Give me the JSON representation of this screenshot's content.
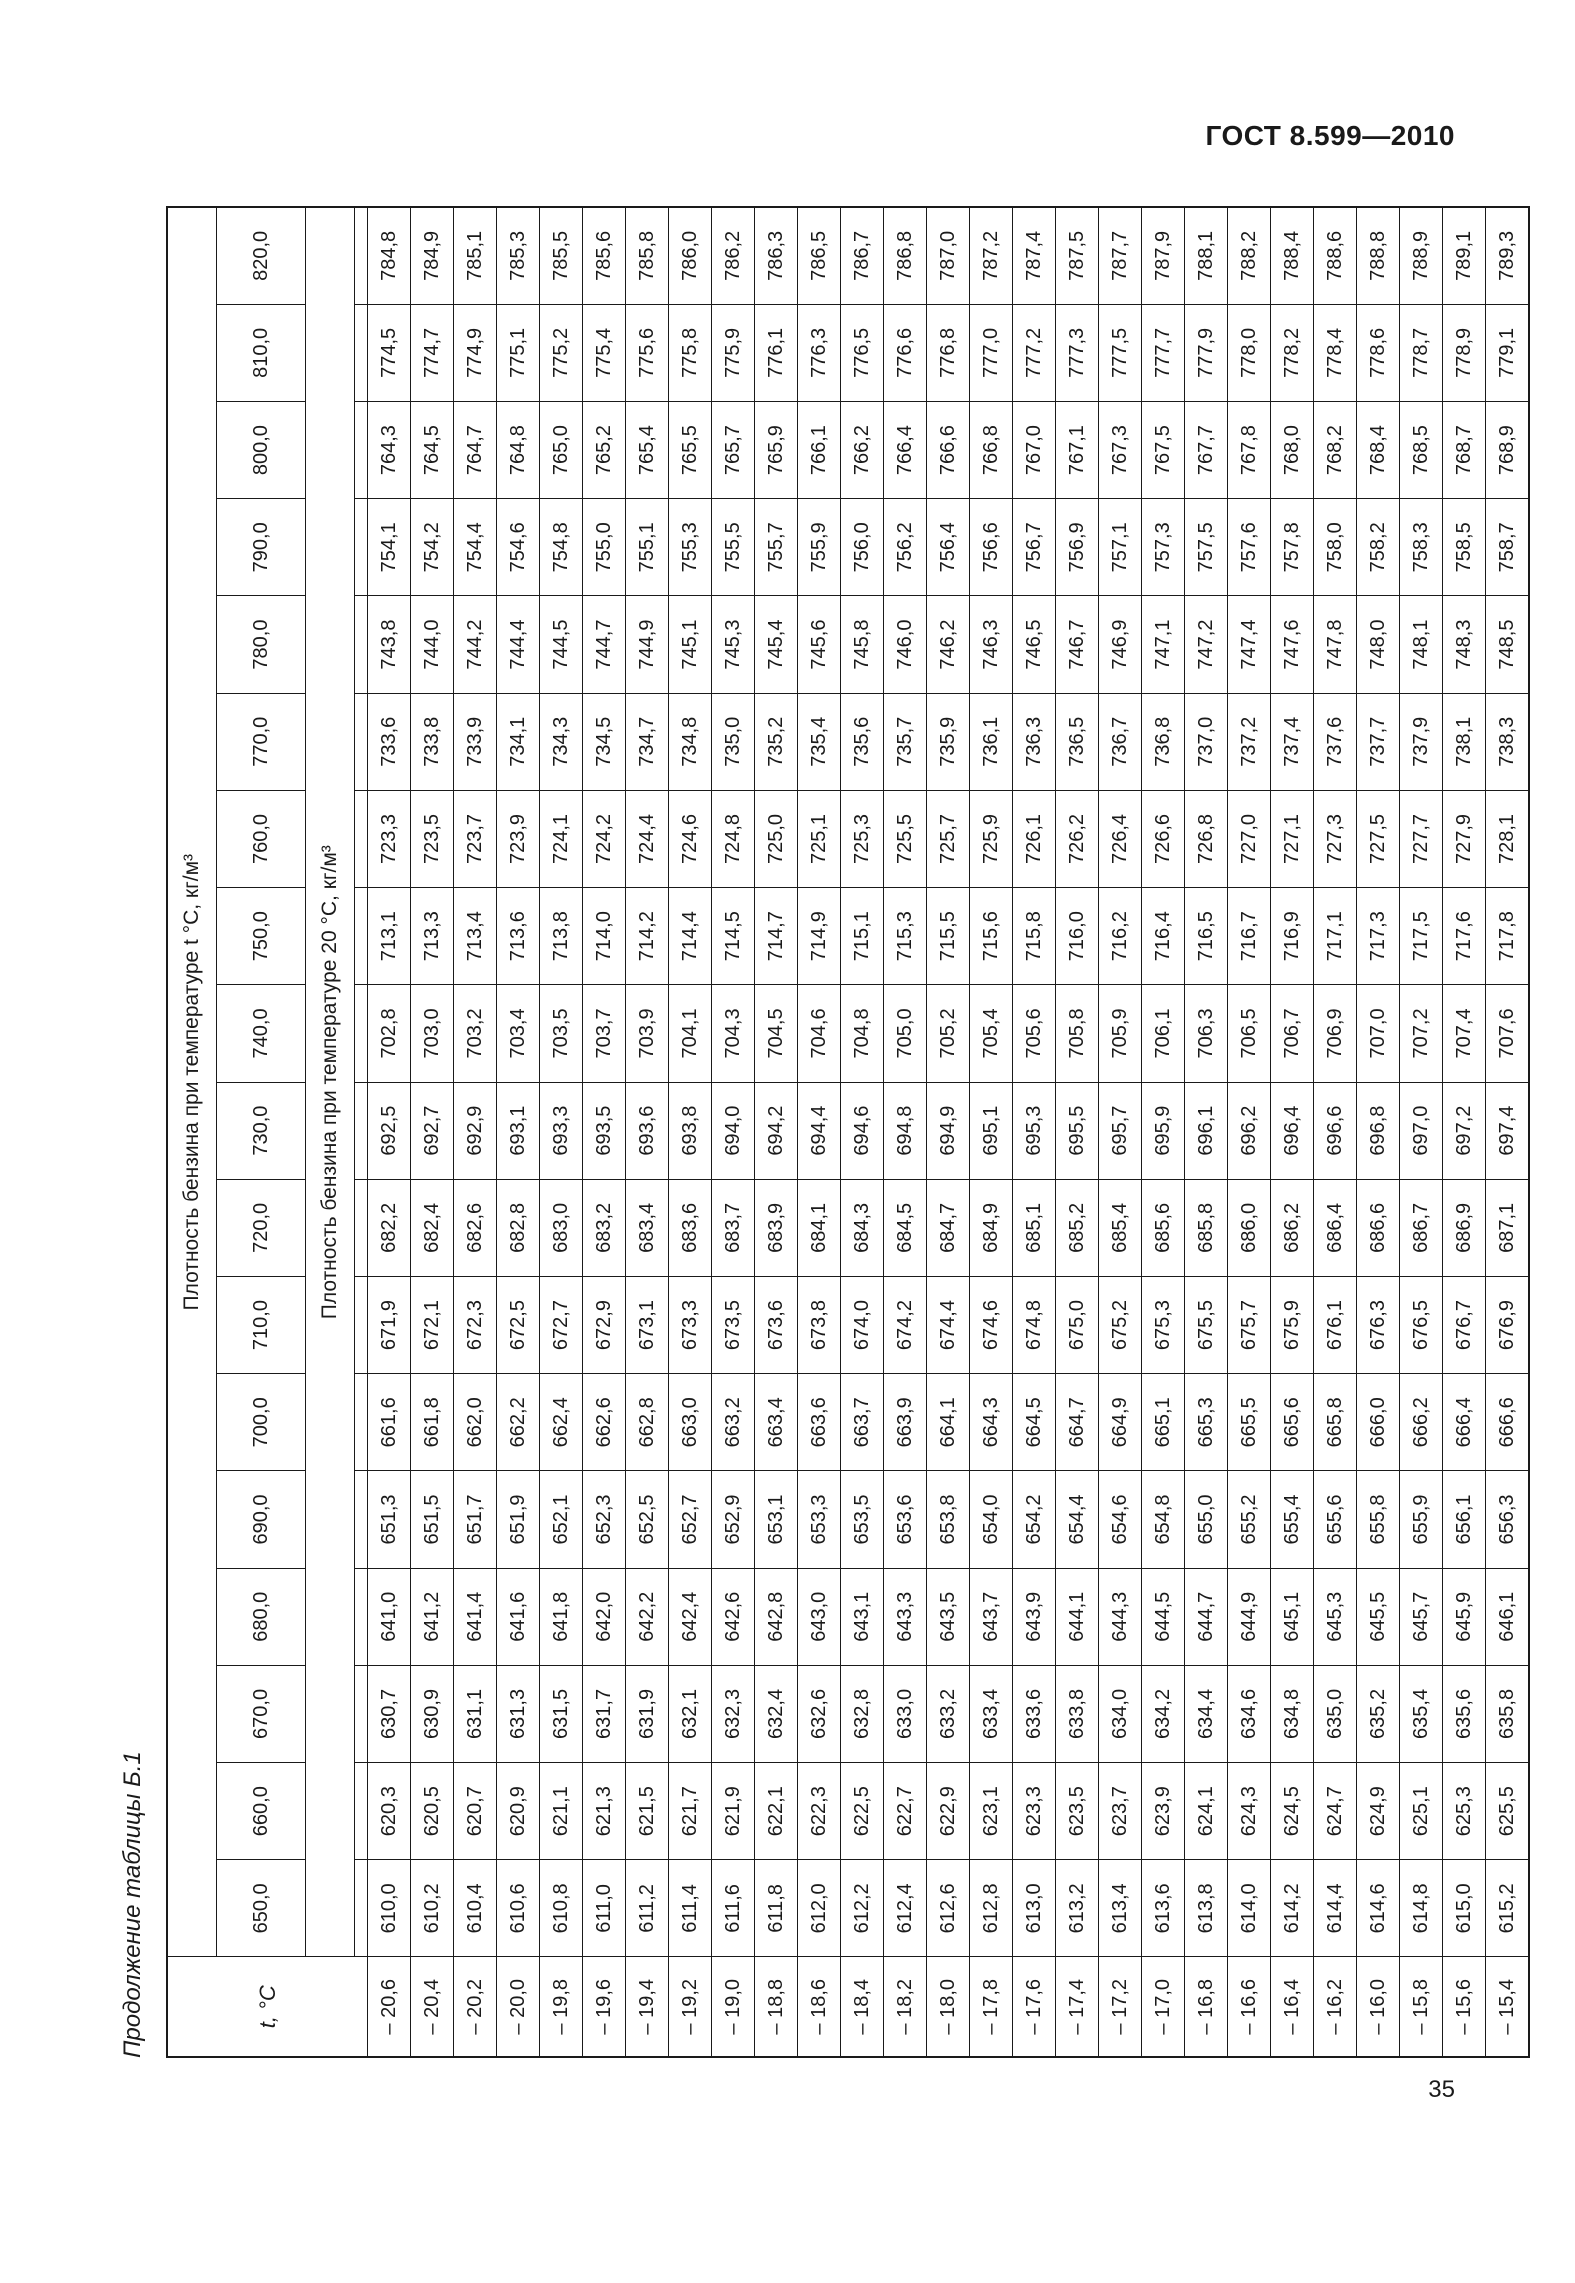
{
  "header": {
    "doc_code": "ГОСТ 8.599—2010"
  },
  "page_number": "35",
  "caption": "Продолжение таблицы Б.1",
  "table": {
    "corner_label": "t, °С",
    "header_main": "Плотность бензина при температуре t °С, кг/м³",
    "header_sub": "Плотность бензина при температуре 20 °С, кг/м³",
    "densities": [
      "650,0",
      "660,0",
      "670,0",
      "680,0",
      "690,0",
      "700,0",
      "710,0",
      "720,0",
      "730,0",
      "740,0",
      "750,0",
      "760,0",
      "770,0",
      "780,0",
      "790,0",
      "800,0",
      "810,0",
      "820,0"
    ],
    "rows": [
      {
        "t": "– 20,6",
        "v": [
          "610,0",
          "620,3",
          "630,7",
          "641,0",
          "651,3",
          "661,6",
          "671,9",
          "682,2",
          "692,5",
          "702,8",
          "713,1",
          "723,3",
          "733,6",
          "743,8",
          "754,1",
          "764,3",
          "774,5",
          "784,8"
        ]
      },
      {
        "t": "– 20,4",
        "v": [
          "610,2",
          "620,5",
          "630,9",
          "641,2",
          "651,5",
          "661,8",
          "672,1",
          "682,4",
          "692,7",
          "703,0",
          "713,3",
          "723,5",
          "733,8",
          "744,0",
          "754,2",
          "764,5",
          "774,7",
          "784,9"
        ]
      },
      {
        "t": "– 20,2",
        "v": [
          "610,4",
          "620,7",
          "631,1",
          "641,4",
          "651,7",
          "662,0",
          "672,3",
          "682,6",
          "692,9",
          "703,2",
          "713,4",
          "723,7",
          "733,9",
          "744,2",
          "754,4",
          "764,7",
          "774,9",
          "785,1"
        ]
      },
      {
        "t": "– 20,0",
        "v": [
          "610,6",
          "620,9",
          "631,3",
          "641,6",
          "651,9",
          "662,2",
          "672,5",
          "682,8",
          "693,1",
          "703,4",
          "713,6",
          "723,9",
          "734,1",
          "744,4",
          "754,6",
          "764,8",
          "775,1",
          "785,3"
        ]
      },
      {
        "t": "– 19,8",
        "v": [
          "610,8",
          "621,1",
          "631,5",
          "641,8",
          "652,1",
          "662,4",
          "672,7",
          "683,0",
          "693,3",
          "703,5",
          "713,8",
          "724,1",
          "734,3",
          "744,5",
          "754,8",
          "765,0",
          "775,2",
          "785,5"
        ]
      },
      {
        "t": "– 19,6",
        "v": [
          "611,0",
          "621,3",
          "631,7",
          "642,0",
          "652,3",
          "662,6",
          "672,9",
          "683,2",
          "693,5",
          "703,7",
          "714,0",
          "724,2",
          "734,5",
          "744,7",
          "755,0",
          "765,2",
          "775,4",
          "785,6"
        ]
      },
      {
        "t": "– 19,4",
        "v": [
          "611,2",
          "621,5",
          "631,9",
          "642,2",
          "652,5",
          "662,8",
          "673,1",
          "683,4",
          "693,6",
          "703,9",
          "714,2",
          "724,4",
          "734,7",
          "744,9",
          "755,1",
          "765,4",
          "775,6",
          "785,8"
        ]
      },
      {
        "t": "– 19,2",
        "v": [
          "611,4",
          "621,7",
          "632,1",
          "642,4",
          "652,7",
          "663,0",
          "673,3",
          "683,6",
          "693,8",
          "704,1",
          "714,4",
          "724,6",
          "734,8",
          "745,1",
          "755,3",
          "765,5",
          "775,8",
          "786,0"
        ]
      },
      {
        "t": "– 19,0",
        "v": [
          "611,6",
          "621,9",
          "632,3",
          "642,6",
          "652,9",
          "663,2",
          "673,5",
          "683,7",
          "694,0",
          "704,3",
          "714,5",
          "724,8",
          "735,0",
          "745,3",
          "755,5",
          "765,7",
          "775,9",
          "786,2"
        ]
      },
      {
        "t": "– 18,8",
        "v": [
          "611,8",
          "622,1",
          "632,4",
          "642,8",
          "653,1",
          "663,4",
          "673,6",
          "683,9",
          "694,2",
          "704,5",
          "714,7",
          "725,0",
          "735,2",
          "745,4",
          "755,7",
          "765,9",
          "776,1",
          "786,3"
        ]
      },
      {
        "t": "– 18,6",
        "v": [
          "612,0",
          "622,3",
          "632,6",
          "643,0",
          "653,3",
          "663,6",
          "673,8",
          "684,1",
          "694,4",
          "704,6",
          "714,9",
          "725,1",
          "735,4",
          "745,6",
          "755,9",
          "766,1",
          "776,3",
          "786,5"
        ]
      },
      {
        "t": "– 18,4",
        "v": [
          "612,2",
          "622,5",
          "632,8",
          "643,1",
          "653,5",
          "663,7",
          "674,0",
          "684,3",
          "694,6",
          "704,8",
          "715,1",
          "725,3",
          "735,6",
          "745,8",
          "756,0",
          "766,2",
          "776,5",
          "786,7"
        ]
      },
      {
        "t": "– 18,2",
        "v": [
          "612,4",
          "622,7",
          "633,0",
          "643,3",
          "653,6",
          "663,9",
          "674,2",
          "684,5",
          "694,8",
          "705,0",
          "715,3",
          "725,5",
          "735,7",
          "746,0",
          "756,2",
          "766,4",
          "776,6",
          "786,8"
        ]
      },
      {
        "t": "– 18,0",
        "v": [
          "612,6",
          "622,9",
          "633,2",
          "643,5",
          "653,8",
          "664,1",
          "674,4",
          "684,7",
          "694,9",
          "705,2",
          "715,5",
          "725,7",
          "735,9",
          "746,2",
          "756,4",
          "766,6",
          "776,8",
          "787,0"
        ]
      },
      {
        "t": "– 17,8",
        "v": [
          "612,8",
          "623,1",
          "633,4",
          "643,7",
          "654,0",
          "664,3",
          "674,6",
          "684,9",
          "695,1",
          "705,4",
          "715,6",
          "725,9",
          "736,1",
          "746,3",
          "756,6",
          "766,8",
          "777,0",
          "787,2"
        ]
      },
      {
        "t": "– 17,6",
        "v": [
          "613,0",
          "623,3",
          "633,6",
          "643,9",
          "654,2",
          "664,5",
          "674,8",
          "685,1",
          "695,3",
          "705,6",
          "715,8",
          "726,1",
          "736,3",
          "746,5",
          "756,7",
          "767,0",
          "777,2",
          "787,4"
        ]
      },
      {
        "t": "– 17,4",
        "v": [
          "613,2",
          "623,5",
          "633,8",
          "644,1",
          "654,4",
          "664,7",
          "675,0",
          "685,2",
          "695,5",
          "705,8",
          "716,0",
          "726,2",
          "736,5",
          "746,7",
          "756,9",
          "767,1",
          "777,3",
          "787,5"
        ]
      },
      {
        "t": "– 17,2",
        "v": [
          "613,4",
          "623,7",
          "634,0",
          "644,3",
          "654,6",
          "664,9",
          "675,2",
          "685,4",
          "695,7",
          "705,9",
          "716,2",
          "726,4",
          "736,7",
          "746,9",
          "757,1",
          "767,3",
          "777,5",
          "787,7"
        ]
      },
      {
        "t": "– 17,0",
        "v": [
          "613,6",
          "623,9",
          "634,2",
          "644,5",
          "654,8",
          "665,1",
          "675,3",
          "685,6",
          "695,9",
          "706,1",
          "716,4",
          "726,6",
          "736,8",
          "747,1",
          "757,3",
          "767,5",
          "777,7",
          "787,9"
        ]
      },
      {
        "t": "– 16,8",
        "v": [
          "613,8",
          "624,1",
          "634,4",
          "644,7",
          "655,0",
          "665,3",
          "675,5",
          "685,8",
          "696,1",
          "706,3",
          "716,5",
          "726,8",
          "737,0",
          "747,2",
          "757,5",
          "767,7",
          "777,9",
          "788,1"
        ]
      },
      {
        "t": "– 16,6",
        "v": [
          "614,0",
          "624,3",
          "634,6",
          "644,9",
          "655,2",
          "665,5",
          "675,7",
          "686,0",
          "696,2",
          "706,5",
          "716,7",
          "727,0",
          "737,2",
          "747,4",
          "757,6",
          "767,8",
          "778,0",
          "788,2"
        ]
      },
      {
        "t": "– 16,4",
        "v": [
          "614,2",
          "624,5",
          "634,8",
          "645,1",
          "655,4",
          "665,6",
          "675,9",
          "686,2",
          "696,4",
          "706,7",
          "716,9",
          "727,1",
          "737,4",
          "747,6",
          "757,8",
          "768,0",
          "778,2",
          "788,4"
        ]
      },
      {
        "t": "– 16,2",
        "v": [
          "614,4",
          "624,7",
          "635,0",
          "645,3",
          "655,6",
          "665,8",
          "676,1",
          "686,4",
          "696,6",
          "706,9",
          "717,1",
          "727,3",
          "737,6",
          "747,8",
          "758,0",
          "768,2",
          "778,4",
          "788,6"
        ]
      },
      {
        "t": "– 16,0",
        "v": [
          "614,6",
          "624,9",
          "635,2",
          "645,5",
          "655,8",
          "666,0",
          "676,3",
          "686,6",
          "696,8",
          "707,0",
          "717,3",
          "727,5",
          "737,7",
          "748,0",
          "758,2",
          "768,4",
          "778,6",
          "788,8"
        ]
      },
      {
        "t": "– 15,8",
        "v": [
          "614,8",
          "625,1",
          "635,4",
          "645,7",
          "655,9",
          "666,2",
          "676,5",
          "686,7",
          "697,0",
          "707,2",
          "717,5",
          "727,7",
          "737,9",
          "748,1",
          "758,3",
          "768,5",
          "778,7",
          "788,9"
        ]
      },
      {
        "t": "– 15,6",
        "v": [
          "615,0",
          "625,3",
          "635,6",
          "645,9",
          "656,1",
          "666,4",
          "676,7",
          "686,9",
          "697,2",
          "707,4",
          "717,6",
          "727,9",
          "738,1",
          "748,3",
          "758,5",
          "768,7",
          "778,9",
          "789,1"
        ]
      },
      {
        "t": "– 15,4",
        "v": [
          "615,2",
          "625,5",
          "635,8",
          "646,1",
          "656,3",
          "666,6",
          "676,9",
          "687,1",
          "697,4",
          "707,6",
          "717,8",
          "728,1",
          "738,3",
          "748,5",
          "758,7",
          "768,9",
          "779,1",
          "789,3"
        ]
      }
    ]
  }
}
